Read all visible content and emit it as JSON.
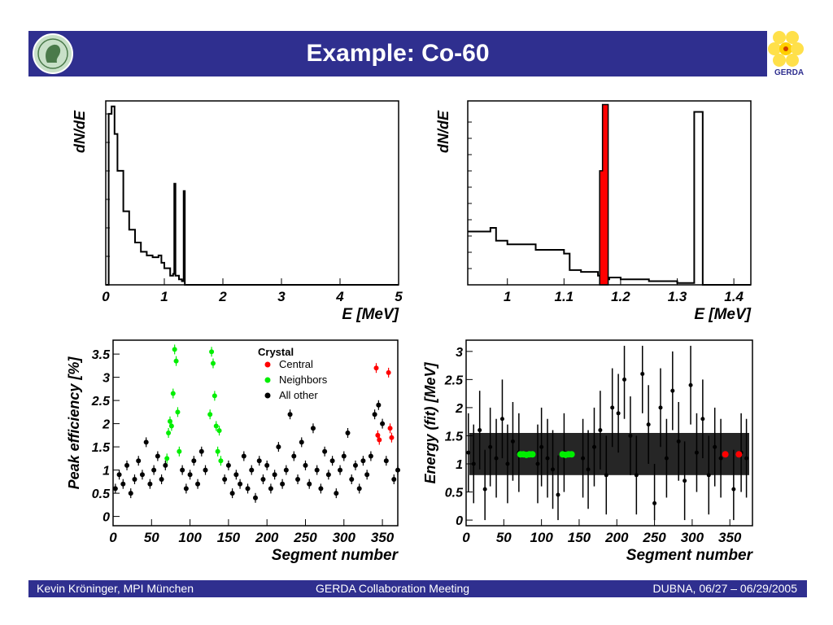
{
  "slide": {
    "title": "Example: Co-60",
    "gerda_logo_text": "GERDA"
  },
  "footer": {
    "left": "Kevin Kröninger, MPI München",
    "center": "GERDA Collaboration Meeting",
    "right": "DUBNA, 06/27 – 06/29/2005"
  },
  "colors": {
    "bar": "#2f2f8f",
    "central": "#ff0000",
    "neighbors": "#00ee00",
    "other": "#000000"
  },
  "chart_data": [
    {
      "type": "line",
      "panel": "full-spectrum",
      "ylabel": "dN/dE",
      "xlabel": "E [MeV]",
      "xlim": [
        0,
        5
      ],
      "xticks": [
        "0",
        "1",
        "2",
        "3",
        "4",
        "5"
      ],
      "x": [
        0.0,
        0.05,
        0.1,
        0.15,
        0.2,
        0.3,
        0.4,
        0.5,
        0.6,
        0.7,
        0.8,
        0.9,
        0.95,
        1.0,
        1.1,
        1.15,
        1.17,
        1.19,
        1.25,
        1.3,
        1.33,
        1.35,
        1.4,
        5.0
      ],
      "y": [
        0.0,
        0.93,
        0.97,
        0.82,
        0.62,
        0.4,
        0.3,
        0.23,
        0.18,
        0.16,
        0.15,
        0.16,
        0.12,
        0.09,
        0.05,
        0.06,
        0.55,
        0.05,
        0.03,
        0.02,
        0.51,
        0.0,
        0.0,
        0.0
      ]
    },
    {
      "type": "line",
      "panel": "zoom-spectrum",
      "ylabel": "dN/dE",
      "xlabel": "E [MeV]",
      "xlim": [
        0.93,
        1.43
      ],
      "xticks": [
        "1",
        "1.1",
        "1.2",
        "1.3",
        "1.4"
      ],
      "series": [
        {
          "x": [
            0.93,
            0.97,
            0.98,
            1.0,
            1.05,
            1.1,
            1.11,
            1.13,
            1.16,
            1.17,
            1.18,
            1.2,
            1.25,
            1.3,
            1.32,
            1.33,
            1.34,
            1.345,
            1.35,
            1.43
          ],
          "y": [
            0.29,
            0.31,
            0.24,
            0.22,
            0.19,
            0.17,
            0.08,
            0.07,
            0.05,
            0.03,
            0.04,
            0.03,
            0.02,
            0.01,
            0.01,
            0.94,
            0.94,
            0.0,
            0.0,
            0.0
          ]
        },
        {
          "name": "",
          "x": [
            1.163,
            1.168,
            1.173,
            1.178
          ],
          "y": [
            0.62,
            0.98,
            0.98,
            0.05
          ],
          "color": "#ff0000"
        }
      ]
    },
    {
      "type": "scatter",
      "panel": "peak-efficiency",
      "ylabel": "Peak efficiency [%]",
      "xlabel": "Segment number",
      "xlim": [
        0,
        370
      ],
      "ylim": [
        -0.2,
        3.8
      ],
      "xticks": [
        "0",
        "50",
        "100",
        "150",
        "200",
        "250",
        "300",
        "350"
      ],
      "yticks": [
        "0",
        "0.5",
        "1",
        "1.5",
        "2",
        "2.5",
        "3",
        "3.5"
      ],
      "legend_title": "Crystal",
      "legend_position": "top-right",
      "series": [
        {
          "name": "Central",
          "color": "#ff0000",
          "x": [
            342,
            344,
            346,
            358,
            360,
            362
          ],
          "y": [
            3.2,
            1.75,
            1.65,
            3.1,
            1.9,
            1.7
          ]
        },
        {
          "name": "Neighbors",
          "color": "#00ee00",
          "x": [
            70,
            72,
            74,
            76,
            78,
            80,
            82,
            84,
            86,
            126,
            128,
            130,
            132,
            134,
            136,
            138,
            140
          ],
          "y": [
            1.25,
            1.8,
            2.05,
            1.95,
            2.65,
            3.6,
            3.35,
            2.25,
            1.4,
            2.2,
            3.55,
            3.3,
            2.6,
            1.95,
            1.4,
            1.85,
            1.2
          ]
        },
        {
          "name": "All other",
          "color": "#000000",
          "x": [
            3,
            8,
            13,
            18,
            23,
            28,
            33,
            38,
            43,
            48,
            53,
            58,
            63,
            68,
            90,
            95,
            100,
            105,
            110,
            115,
            120,
            145,
            150,
            155,
            160,
            165,
            170,
            175,
            180,
            185,
            190,
            195,
            200,
            205,
            210,
            215,
            220,
            225,
            230,
            235,
            240,
            245,
            250,
            255,
            260,
            265,
            270,
            275,
            280,
            285,
            290,
            295,
            300,
            305,
            310,
            315,
            320,
            325,
            330,
            335,
            340,
            345,
            350,
            355,
            365,
            370
          ],
          "y": [
            0.6,
            0.9,
            0.7,
            1.1,
            0.5,
            0.8,
            1.2,
            0.9,
            1.6,
            0.7,
            1.0,
            1.3,
            0.8,
            1.1,
            1.0,
            0.6,
            0.9,
            1.2,
            0.7,
            1.4,
            1.0,
            0.8,
            1.1,
            0.5,
            0.9,
            0.7,
            1.3,
            0.6,
            1.0,
            0.4,
            1.2,
            0.8,
            1.1,
            0.6,
            0.9,
            1.5,
            0.7,
            1.0,
            2.2,
            1.3,
            0.8,
            1.6,
            1.1,
            0.7,
            1.9,
            1.0,
            0.6,
            1.4,
            0.9,
            1.2,
            0.5,
            1.0,
            1.3,
            1.8,
            0.8,
            1.1,
            0.6,
            1.2,
            0.9,
            1.3,
            2.2,
            2.4,
            2.0,
            1.2,
            0.8,
            1.0
          ]
        }
      ]
    },
    {
      "type": "scatter",
      "panel": "energy-fit",
      "ylabel": "Energy (fit)  [MeV]",
      "xlabel": "Segment number",
      "xlim": [
        0,
        380
      ],
      "ylim": [
        -0.1,
        3.2
      ],
      "xticks": [
        "0",
        "50",
        "100",
        "150",
        "200",
        "250",
        "300",
        "350"
      ],
      "yticks": [
        "0",
        "0.5",
        "1",
        "1.5",
        "2",
        "2.5",
        "3"
      ],
      "series": [
        {
          "name": "",
          "color": "#000000",
          "x": [
            3,
            10,
            18,
            25,
            32,
            40,
            48,
            55,
            62,
            70,
            95,
            100,
            108,
            115,
            122,
            130,
            155,
            162,
            170,
            178,
            186,
            194,
            202,
            210,
            218,
            226,
            234,
            242,
            250,
            258,
            266,
            274,
            282,
            290,
            298,
            306,
            314,
            322,
            330,
            338,
            355,
            365,
            372
          ],
          "y": [
            1.2,
            1.0,
            1.6,
            0.55,
            1.3,
            1.1,
            1.8,
            1.0,
            1.4,
            1.2,
            1.0,
            1.3,
            1.1,
            0.9,
            0.45,
            1.2,
            1.1,
            0.9,
            1.3,
            1.6,
            0.8,
            2.0,
            1.9,
            2.5,
            1.5,
            0.8,
            2.6,
            1.7,
            0.3,
            2.0,
            1.1,
            2.3,
            1.4,
            0.7,
            2.4,
            1.2,
            1.8,
            0.8,
            1.3,
            1.1,
            0.55,
            1.2,
            1.1
          ]
        },
        {
          "name": "",
          "color": "#00ee00",
          "x": [
            72,
            76,
            80,
            84,
            88,
            128,
            132,
            136,
            140
          ],
          "y": [
            1.17,
            1.17,
            1.16,
            1.17,
            1.17,
            1.17,
            1.16,
            1.17,
            1.17
          ]
        },
        {
          "name": "",
          "color": "#ff0000",
          "x": [
            344,
            362
          ],
          "y": [
            1.17,
            1.17
          ]
        }
      ]
    }
  ]
}
